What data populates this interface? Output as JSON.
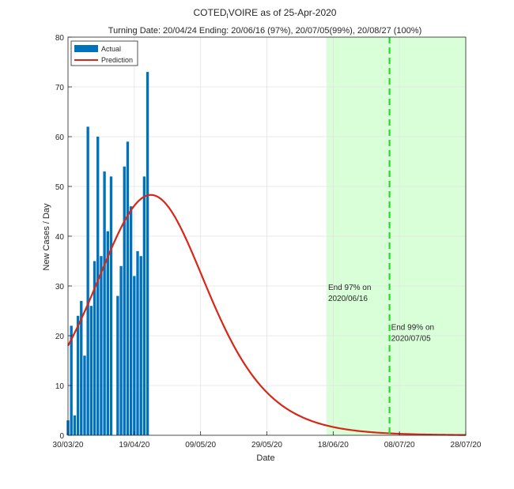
{
  "chart_data": {
    "type": "bar",
    "title_line1": "COTED",
    "title_sub": "I",
    "title_line1_rest": "VOIRE as of 25-Apr-2020",
    "title_line2": "Turning Date: 20/04/24  Ending: 20/06/16 (97%), 20/07/05(99%), 20/08/27 (100%)",
    "xlabel": "Date",
    "ylabel": "New Cases / Day",
    "x_start": "2020-03-30",
    "xlim_days": [
      0,
      120
    ],
    "ylim": [
      0,
      80
    ],
    "yticks": [
      0,
      10,
      20,
      30,
      40,
      50,
      60,
      70,
      80
    ],
    "xticks": [
      {
        "day": 0,
        "label": "30/03/20"
      },
      {
        "day": 20,
        "label": "19/04/20"
      },
      {
        "day": 40,
        "label": "09/05/20"
      },
      {
        "day": 60,
        "label": "29/05/20"
      },
      {
        "day": 80,
        "label": "18/06/20"
      },
      {
        "day": 100,
        "label": "08/07/20"
      },
      {
        "day": 120,
        "label": "28/07/20"
      }
    ],
    "grid": true,
    "legend_position": "top-left",
    "actual": {
      "name": "Actual",
      "color": "#0072BD",
      "days": [
        0,
        1,
        2,
        3,
        4,
        5,
        6,
        7,
        8,
        9,
        10,
        11,
        12,
        13,
        14,
        15,
        16,
        17,
        18,
        19,
        20,
        21,
        22,
        23,
        24,
        25,
        26
      ],
      "values": [
        3,
        22,
        4,
        24,
        27,
        16,
        62,
        26,
        35,
        60,
        36,
        53,
        41,
        52,
        0,
        28,
        34,
        54,
        59,
        46,
        32,
        37,
        36,
        52,
        73,
        0,
        0
      ]
    },
    "prediction": {
      "name": "Prediction",
      "color": "#D62718",
      "peak_day": 25,
      "peak_value": 48.3,
      "start_value": 18
    },
    "shaded_region": {
      "color": "#D8FFD8",
      "start_day": 78,
      "end_day": 120
    },
    "end_lines": [
      {
        "day": 97,
        "color": "#22DD22"
      }
    ],
    "annotations": [
      {
        "label_line1": "End 97% on",
        "label_line2": "2020/06/16",
        "day": 78,
        "y": 27
      },
      {
        "label_line1": "End 99% on",
        "label_line2": "2020/07/05",
        "day": 97,
        "y": 19
      }
    ]
  }
}
